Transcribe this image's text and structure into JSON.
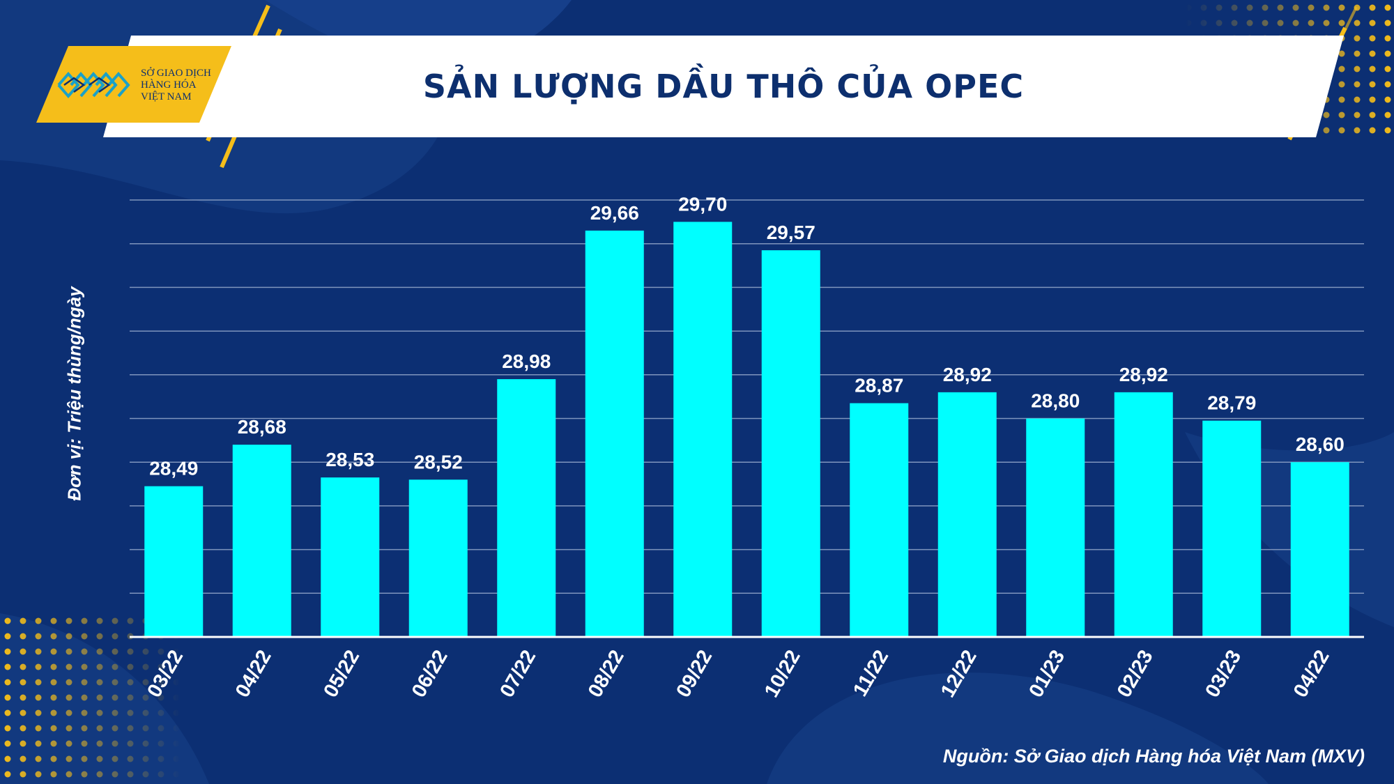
{
  "title": "SẢN LƯỢNG DẦU THÔ CỦA OPEC",
  "logo": {
    "line1": "SỞ GIAO DỊCH",
    "line2": "HÀNG HÓA",
    "line3": "VIỆT NAM"
  },
  "y_unit_label": "Đơn vị: Triệu thùng/ngày",
  "source": "Nguồn: Sở Giao dịch Hàng hóa Việt Nam (MXV)",
  "colors": {
    "background": "#0c2f73",
    "bar": "#00ffff",
    "accent": "#f5be1a",
    "title_text": "#0d2f6e"
  },
  "chart_data": {
    "type": "bar",
    "categories": [
      "03/22",
      "04/22",
      "05/22",
      "06/22",
      "07/22",
      "08/22",
      "09/22",
      "10/22",
      "11/22",
      "12/22",
      "01/23",
      "02/23",
      "03/23",
      "04/22"
    ],
    "values": [
      28.49,
      28.68,
      28.53,
      28.52,
      28.98,
      29.66,
      29.7,
      29.57,
      28.87,
      28.92,
      28.8,
      28.92,
      28.79,
      28.6
    ],
    "value_labels": [
      "28,49",
      "28,68",
      "28,53",
      "28,52",
      "28,98",
      "29,66",
      "29,70",
      "29,57",
      "28,87",
      "28,92",
      "28,80",
      "28,92",
      "28,79",
      "28,60"
    ],
    "title": "SẢN LƯỢNG DẦU THÔ CỦA OPEC",
    "xlabel": "",
    "ylabel": "Đơn vị: Triệu thùng/ngày",
    "ylim": [
      27.8,
      29.8
    ],
    "grid": true,
    "legend": "none"
  }
}
